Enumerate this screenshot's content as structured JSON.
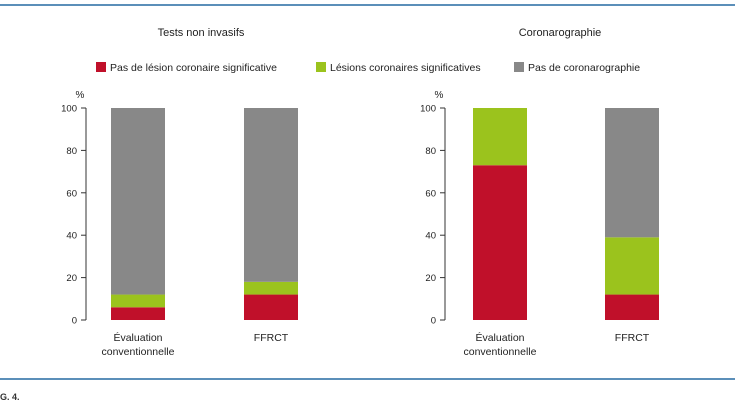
{
  "figure": {
    "label": "G. 4."
  },
  "colors": {
    "frame": "#5b8fb9",
    "red": "#c0102a",
    "green": "#9bc31d",
    "gray": "#888888",
    "axis": "#333333"
  },
  "legend": [
    {
      "name": "Pas de lésion coronaire significative",
      "color": "#c0102a"
    },
    {
      "name": "Lésions coronaires significatives",
      "color": "#9bc31d"
    },
    {
      "name": "Pas de coronarographie",
      "color": "#888888"
    }
  ],
  "chart_data": [
    {
      "type": "bar",
      "stacked": true,
      "title": "Tests non invasifs",
      "ylabel": "%",
      "ylim": [
        0,
        100
      ],
      "yticks": [
        "0",
        "20",
        "40",
        "60",
        "80",
        "100"
      ],
      "categories": [
        [
          "Évaluation",
          "conventionnelle"
        ],
        [
          "FFRCT"
        ]
      ],
      "series": [
        {
          "name": "Pas de lésion coronaire significative",
          "values": [
            6,
            12
          ]
        },
        {
          "name": "Lésions coronaires significatives",
          "values": [
            6,
            6
          ]
        },
        {
          "name": "Pas de coronarographie",
          "values": [
            88,
            82
          ]
        }
      ]
    },
    {
      "type": "bar",
      "stacked": true,
      "title": "Coronarographie",
      "ylabel": "%",
      "ylim": [
        0,
        100
      ],
      "yticks": [
        "0",
        "20",
        "40",
        "60",
        "80",
        "100"
      ],
      "categories": [
        [
          "Évaluation",
          "conventionnelle"
        ],
        [
          "FFRCT"
        ]
      ],
      "series": [
        {
          "name": "Pas de lésion coronaire significative",
          "values": [
            73,
            12
          ]
        },
        {
          "name": "Lésions coronaires significatives",
          "values": [
            27,
            27
          ]
        },
        {
          "name": "Pas de coronarographie",
          "values": [
            0,
            61
          ]
        }
      ]
    }
  ]
}
